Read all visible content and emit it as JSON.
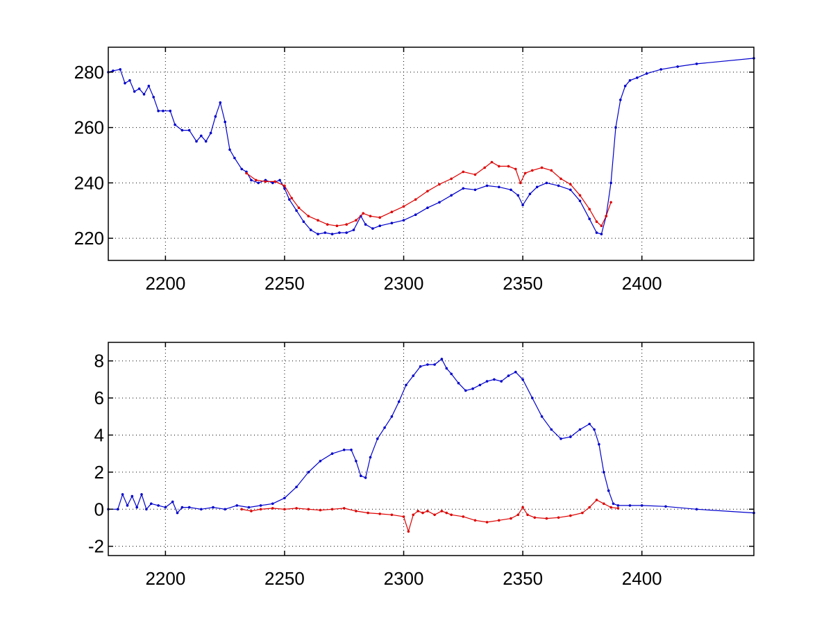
{
  "colors": {
    "series_blue": "#0000cc",
    "series_red": "#dd0000",
    "axes": "#000000",
    "background": "#ffffff"
  },
  "chart_data": [
    {
      "type": "line",
      "title": "",
      "xlabel": "",
      "ylabel": "",
      "xlim": [
        2176,
        2447
      ],
      "ylim": [
        212,
        289
      ],
      "grid": true,
      "xticks": [
        2200,
        2250,
        2300,
        2350,
        2400
      ],
      "xtick_labels": [
        "2200",
        "2250",
        "2300",
        "2350",
        "2400"
      ],
      "yticks": [
        220,
        240,
        260,
        280
      ],
      "ytick_labels": [
        "220",
        "240",
        "260",
        "280"
      ],
      "series": [
        {
          "color": "#0000cc",
          "markers": true,
          "x": [
            2176,
            2178,
            2181,
            2183,
            2185,
            2187,
            2189,
            2191,
            2193,
            2195,
            2197,
            2199,
            2202,
            2204,
            2207,
            2210,
            2213,
            2215,
            2217,
            2219,
            2221,
            2223,
            2225,
            2227,
            2229,
            2232,
            2234,
            2236,
            2239,
            2242,
            2245,
            2248,
            2250,
            2252,
            2255,
            2258,
            2261,
            2264,
            2267,
            2270,
            2273,
            2276,
            2279,
            2282,
            2284,
            2287,
            2290,
            2295,
            2300,
            2305,
            2310,
            2315,
            2320,
            2325,
            2330,
            2335,
            2340,
            2345,
            2348,
            2350,
            2353,
            2356,
            2360,
            2365,
            2370,
            2374,
            2378,
            2381,
            2383,
            2385,
            2387,
            2389,
            2391,
            2393,
            2395,
            2398,
            2402,
            2408,
            2415,
            2423,
            2447
          ],
          "y": [
            280,
            280.5,
            281,
            276,
            277,
            273,
            274,
            272,
            275,
            271,
            266,
            266,
            266,
            261,
            259,
            259,
            255,
            257,
            255,
            258,
            264,
            269,
            262,
            252,
            249,
            245,
            244,
            241,
            240,
            241,
            240,
            241,
            238,
            234,
            230,
            226,
            223,
            221.5,
            222,
            221.5,
            222,
            222,
            223,
            228,
            225,
            223.5,
            224.5,
            225.5,
            226.5,
            228.5,
            231,
            233,
            235.5,
            238,
            237.5,
            239,
            238.5,
            237.5,
            235.5,
            232,
            236,
            238.5,
            240,
            239,
            237.5,
            233.5,
            227,
            222,
            221.5,
            228,
            240,
            260,
            270,
            275,
            277,
            278,
            279.5,
            281,
            282,
            283,
            285
          ]
        },
        {
          "color": "#dd0000",
          "markers": true,
          "x": [
            2234,
            2238,
            2242,
            2246,
            2250,
            2253,
            2256,
            2260,
            2264,
            2268,
            2272,
            2276,
            2280,
            2283,
            2286,
            2290,
            2295,
            2300,
            2305,
            2310,
            2315,
            2320,
            2325,
            2330,
            2334,
            2337,
            2340,
            2344,
            2347,
            2349,
            2351,
            2354,
            2358,
            2362,
            2366,
            2370,
            2374,
            2378,
            2381,
            2383,
            2385,
            2387
          ],
          "y": [
            243.5,
            241,
            240.5,
            240.5,
            239,
            234.5,
            231,
            228,
            226.5,
            225,
            224.5,
            225,
            226.5,
            229,
            228,
            227.5,
            229.5,
            231.5,
            234,
            237,
            239.5,
            241.5,
            244,
            243,
            245.5,
            247.5,
            246,
            246,
            245,
            240,
            243.5,
            244.5,
            245.5,
            244.5,
            241.5,
            239.5,
            235.5,
            230.5,
            226,
            224.5,
            228,
            233
          ]
        }
      ]
    },
    {
      "type": "line",
      "title": "",
      "xlabel": "",
      "ylabel": "",
      "xlim": [
        2176,
        2447
      ],
      "ylim": [
        -2.5,
        9
      ],
      "grid": true,
      "xticks": [
        2200,
        2250,
        2300,
        2350,
        2400
      ],
      "xtick_labels": [
        "2200",
        "2250",
        "2300",
        "2350",
        "2400"
      ],
      "yticks": [
        -2,
        0,
        2,
        4,
        6,
        8
      ],
      "ytick_labels": [
        "-2",
        "0",
        "2",
        "4",
        "6",
        "8"
      ],
      "series": [
        {
          "color": "#0000cc",
          "markers": true,
          "x": [
            2176,
            2180,
            2182,
            2184,
            2186,
            2188,
            2190,
            2192,
            2194,
            2197,
            2200,
            2203,
            2205,
            2207,
            2210,
            2215,
            2220,
            2225,
            2230,
            2235,
            2240,
            2245,
            2250,
            2255,
            2260,
            2265,
            2270,
            2275,
            2278,
            2280,
            2282,
            2284,
            2286,
            2289,
            2292,
            2295,
            2298,
            2301,
            2304,
            2307,
            2310,
            2313,
            2316,
            2318,
            2320,
            2323,
            2326,
            2329,
            2332,
            2335,
            2338,
            2341,
            2344,
            2347,
            2350,
            2354,
            2358,
            2362,
            2366,
            2370,
            2374,
            2378,
            2380,
            2382,
            2384,
            2386,
            2388,
            2390,
            2395,
            2400,
            2410,
            2423,
            2447
          ],
          "y": [
            0,
            0,
            0.8,
            0.2,
            0.7,
            0.1,
            0.8,
            0,
            0.3,
            0.2,
            0.1,
            0.4,
            -0.2,
            0.1,
            0.1,
            0,
            0.1,
            0,
            0.2,
            0.1,
            0.2,
            0.3,
            0.6,
            1.2,
            2.0,
            2.6,
            3.0,
            3.2,
            3.2,
            2.6,
            1.8,
            1.7,
            2.8,
            3.8,
            4.4,
            5.0,
            5.8,
            6.7,
            7.2,
            7.7,
            7.8,
            7.8,
            8.1,
            7.6,
            7.3,
            6.8,
            6.4,
            6.5,
            6.7,
            6.9,
            7.0,
            6.9,
            7.2,
            7.4,
            7.0,
            6.0,
            5.0,
            4.3,
            3.8,
            3.9,
            4.3,
            4.6,
            4.3,
            3.5,
            2.0,
            1.0,
            0.3,
            0.2,
            0.2,
            0.2,
            0.15,
            0,
            -0.2
          ]
        },
        {
          "color": "#dd0000",
          "markers": true,
          "x": [
            2232,
            2236,
            2240,
            2245,
            2250,
            2255,
            2260,
            2265,
            2270,
            2275,
            2280,
            2285,
            2290,
            2295,
            2300,
            2302,
            2304,
            2306,
            2308,
            2310,
            2313,
            2316,
            2318,
            2320,
            2325,
            2330,
            2335,
            2340,
            2345,
            2348,
            2350,
            2352,
            2355,
            2360,
            2365,
            2370,
            2375,
            2378,
            2381,
            2384,
            2387,
            2390
          ],
          "y": [
            0,
            -0.1,
            0,
            0.05,
            0,
            0.05,
            0,
            -0.05,
            0,
            0.05,
            -0.1,
            -0.2,
            -0.25,
            -0.3,
            -0.4,
            -1.2,
            -0.3,
            -0.1,
            -0.2,
            -0.1,
            -0.3,
            -0.1,
            -0.2,
            -0.3,
            -0.4,
            -0.6,
            -0.7,
            -0.6,
            -0.5,
            -0.3,
            0.1,
            -0.3,
            -0.45,
            -0.5,
            -0.45,
            -0.35,
            -0.2,
            0.1,
            0.5,
            0.3,
            0.1,
            0.05
          ]
        }
      ]
    }
  ]
}
